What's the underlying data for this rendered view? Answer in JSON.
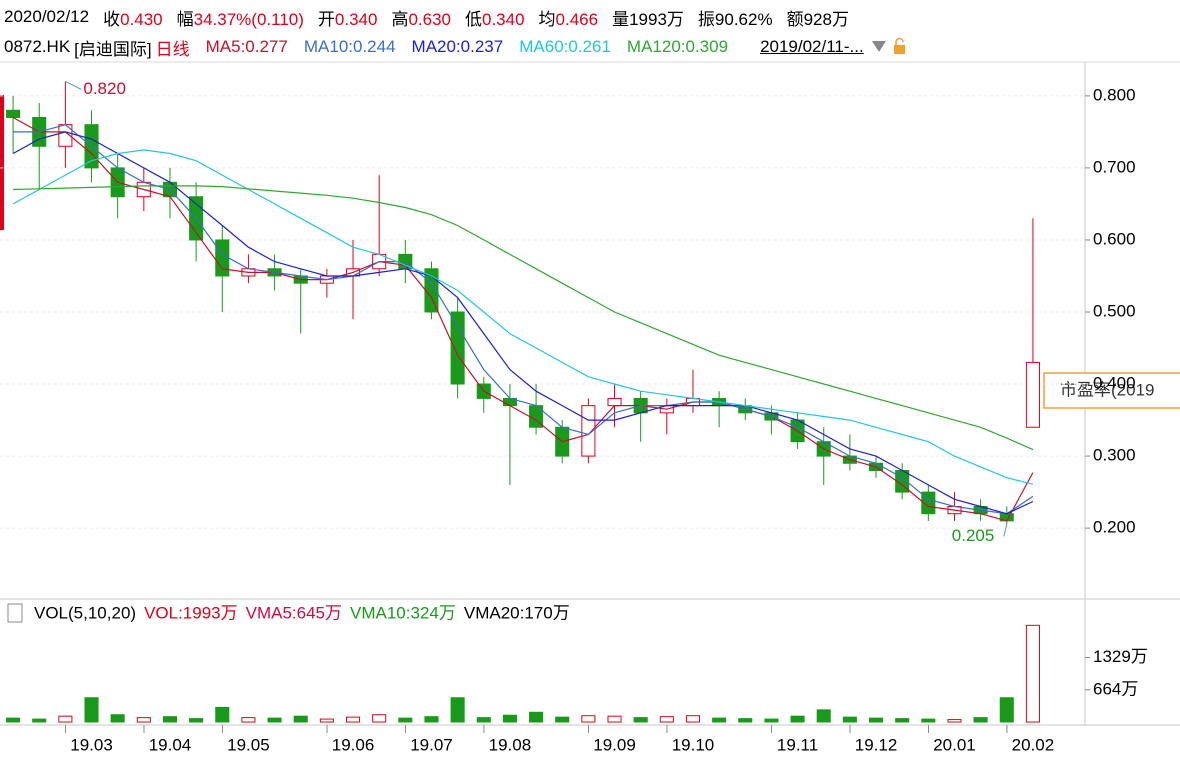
{
  "header": {
    "items": [
      {
        "label": "2020/02/12",
        "color": "#000000"
      },
      {
        "label": "收",
        "value": "0.430",
        "color": "#e0001a"
      },
      {
        "label": "幅",
        "value": "34.37%(0.110)",
        "color": "#e0001a"
      },
      {
        "label": "开",
        "value": "0.340",
        "color": "#e0001a"
      },
      {
        "label": "高",
        "value": "0.630",
        "color": "#e0001a"
      },
      {
        "label": "低",
        "value": "0.340",
        "color": "#e0001a"
      },
      {
        "label": "均",
        "value": "0.466",
        "color": "#e0001a"
      },
      {
        "label": "量",
        "value": "1993万",
        "color": "#000000"
      },
      {
        "label": "振",
        "value": "90.62%",
        "color": "#000000"
      },
      {
        "label": "额",
        "value": "928万",
        "color": "#000000"
      }
    ]
  },
  "chart_data": [
    {
      "type": "candlestick",
      "symbol": "0872.HK",
      "stock_name": "[启迪国际]",
      "period": "日线",
      "range_label": "2019/02/11-...",
      "pe_label": "市盈率(2019",
      "up_color": "#e0001a",
      "down_color": "#1a9a1a",
      "ylim": [
        0.103,
        0.847
      ],
      "yticks": [
        {
          "value": 0.2,
          "label": "0.200"
        },
        {
          "value": 0.3,
          "label": "0.300"
        },
        {
          "value": 0.4,
          "label": "0.400"
        },
        {
          "value": 0.5,
          "label": "0.500"
        },
        {
          "value": 0.6,
          "label": "0.600"
        },
        {
          "value": 0.7,
          "label": "0.700"
        },
        {
          "value": 0.8,
          "label": "0.800"
        }
      ],
      "grid": true,
      "candles": {
        "open": [
          0.78,
          0.77,
          0.73,
          0.76,
          0.7,
          0.66,
          0.68,
          0.66,
          0.6,
          0.55,
          0.56,
          0.55,
          0.54,
          0.55,
          0.56,
          0.58,
          0.56,
          0.5,
          0.4,
          0.38,
          0.37,
          0.34,
          0.3,
          0.37,
          0.38,
          0.36,
          0.37,
          0.38,
          0.37,
          0.36,
          0.35,
          0.32,
          0.3,
          0.29,
          0.28,
          0.25,
          0.22,
          0.23,
          0.22,
          0.34
        ],
        "high": [
          0.8,
          0.79,
          0.82,
          0.78,
          0.72,
          0.7,
          0.7,
          0.68,
          0.62,
          0.58,
          0.58,
          0.56,
          0.56,
          0.6,
          0.69,
          0.6,
          0.57,
          0.52,
          0.41,
          0.4,
          0.4,
          0.35,
          0.38,
          0.4,
          0.39,
          0.38,
          0.42,
          0.39,
          0.38,
          0.37,
          0.36,
          0.34,
          0.33,
          0.3,
          0.29,
          0.26,
          0.25,
          0.24,
          0.23,
          0.63
        ],
        "low": [
          0.72,
          0.67,
          0.7,
          0.68,
          0.63,
          0.64,
          0.63,
          0.57,
          0.5,
          0.54,
          0.53,
          0.47,
          0.52,
          0.49,
          0.55,
          0.54,
          0.49,
          0.38,
          0.36,
          0.26,
          0.33,
          0.29,
          0.29,
          0.34,
          0.32,
          0.33,
          0.36,
          0.34,
          0.35,
          0.33,
          0.31,
          0.26,
          0.28,
          0.27,
          0.24,
          0.21,
          0.21,
          0.21,
          0.205,
          0.34
        ],
        "close": [
          0.77,
          0.73,
          0.76,
          0.7,
          0.66,
          0.68,
          0.66,
          0.6,
          0.55,
          0.56,
          0.55,
          0.54,
          0.55,
          0.56,
          0.58,
          0.56,
          0.5,
          0.4,
          0.38,
          0.37,
          0.34,
          0.3,
          0.37,
          0.38,
          0.36,
          0.37,
          0.38,
          0.37,
          0.36,
          0.35,
          0.32,
          0.3,
          0.29,
          0.28,
          0.25,
          0.22,
          0.23,
          0.22,
          0.21,
          0.43
        ]
      },
      "series": [
        {
          "name": "MA5:0.277",
          "color": "#c8102e",
          "values": [
            0.77,
            0.75,
            0.75,
            0.72,
            0.68,
            0.67,
            0.66,
            0.61,
            0.56,
            0.555,
            0.555,
            0.545,
            0.545,
            0.555,
            0.57,
            0.565,
            0.52,
            0.44,
            0.39,
            0.37,
            0.35,
            0.32,
            0.33,
            0.37,
            0.37,
            0.365,
            0.375,
            0.375,
            0.365,
            0.355,
            0.335,
            0.31,
            0.295,
            0.285,
            0.26,
            0.23,
            0.225,
            0.22,
            0.21,
            0.277
          ]
        },
        {
          "name": "MA10:0.244",
          "color": "#3a6fc4",
          "values": [
            0.75,
            0.75,
            0.76,
            0.73,
            0.7,
            0.68,
            0.67,
            0.63,
            0.58,
            0.56,
            0.555,
            0.55,
            0.545,
            0.55,
            0.57,
            0.57,
            0.54,
            0.48,
            0.42,
            0.38,
            0.37,
            0.34,
            0.33,
            0.36,
            0.37,
            0.37,
            0.375,
            0.375,
            0.365,
            0.355,
            0.34,
            0.32,
            0.3,
            0.29,
            0.27,
            0.24,
            0.23,
            0.225,
            0.22,
            0.244
          ]
        },
        {
          "name": "MA20:0.237",
          "color": "#1f1fd0",
          "values": [
            0.72,
            0.74,
            0.75,
            0.74,
            0.72,
            0.7,
            0.68,
            0.65,
            0.62,
            0.59,
            0.57,
            0.56,
            0.55,
            0.55,
            0.555,
            0.56,
            0.55,
            0.52,
            0.47,
            0.42,
            0.39,
            0.37,
            0.35,
            0.35,
            0.36,
            0.37,
            0.37,
            0.37,
            0.37,
            0.36,
            0.35,
            0.33,
            0.31,
            0.3,
            0.28,
            0.26,
            0.24,
            0.23,
            0.22,
            0.237
          ]
        },
        {
          "name": "MA60:0.261",
          "color": "#1ec8dc",
          "values": [
            0.65,
            0.67,
            0.69,
            0.71,
            0.72,
            0.725,
            0.72,
            0.71,
            0.69,
            0.67,
            0.65,
            0.63,
            0.61,
            0.59,
            0.58,
            0.565,
            0.55,
            0.53,
            0.5,
            0.47,
            0.45,
            0.43,
            0.41,
            0.4,
            0.39,
            0.385,
            0.38,
            0.375,
            0.37,
            0.365,
            0.36,
            0.355,
            0.35,
            0.34,
            0.33,
            0.32,
            0.3,
            0.285,
            0.27,
            0.261
          ]
        },
        {
          "name": "MA120:0.309",
          "color": "#2ea82e",
          "values": [
            0.67,
            0.671,
            0.672,
            0.673,
            0.674,
            0.675,
            0.675,
            0.675,
            0.674,
            0.671,
            0.668,
            0.665,
            0.662,
            0.658,
            0.652,
            0.645,
            0.635,
            0.62,
            0.6,
            0.58,
            0.56,
            0.54,
            0.52,
            0.5,
            0.485,
            0.47,
            0.455,
            0.44,
            0.43,
            0.42,
            0.41,
            0.4,
            0.39,
            0.38,
            0.37,
            0.36,
            0.35,
            0.34,
            0.325,
            0.309
          ]
        }
      ],
      "annotations": [
        {
          "label": "0.820",
          "value": 0.82,
          "color": "#c8102e",
          "at": "high"
        },
        {
          "label": "0.205",
          "value": 0.205,
          "color": "#1a9a1a",
          "at": "low"
        }
      ]
    },
    {
      "type": "volume",
      "ylim": [
        0,
        2000
      ],
      "yticks": [
        {
          "value": 664,
          "label": "664万"
        },
        {
          "value": 1329,
          "label": "1329万"
        }
      ],
      "legend": [
        {
          "text": "VOL(5,10,20)",
          "color": "#000000"
        },
        {
          "text": "VOL:1993万",
          "color": "#e0001a"
        },
        {
          "text": "VMA5:645万",
          "color": "#d20a3c"
        },
        {
          "text": "VMA10:324万",
          "color": "#1a9a1a"
        },
        {
          "text": "VMA20:170万",
          "color": "#000000"
        }
      ],
      "categories": [
        null,
        null,
        null,
        "19.03",
        null,
        null,
        "19.04",
        null,
        null,
        "19.05",
        null,
        null,
        null,
        "19.06",
        null,
        null,
        "19.07",
        null,
        null,
        "19.08",
        null,
        null,
        null,
        "19.09",
        null,
        null,
        "19.10",
        null,
        null,
        null,
        "19.11",
        null,
        null,
        "19.12",
        null,
        null,
        "20.01",
        null,
        null,
        "20.02"
      ],
      "values": [
        80,
        60,
        120,
        500,
        150,
        90,
        110,
        70,
        300,
        90,
        80,
        120,
        60,
        100,
        150,
        80,
        110,
        500,
        90,
        140,
        200,
        100,
        130,
        120,
        90,
        110,
        130,
        80,
        70,
        60,
        120,
        250,
        100,
        80,
        70,
        60,
        50,
        90,
        500,
        1993
      ]
    }
  ]
}
